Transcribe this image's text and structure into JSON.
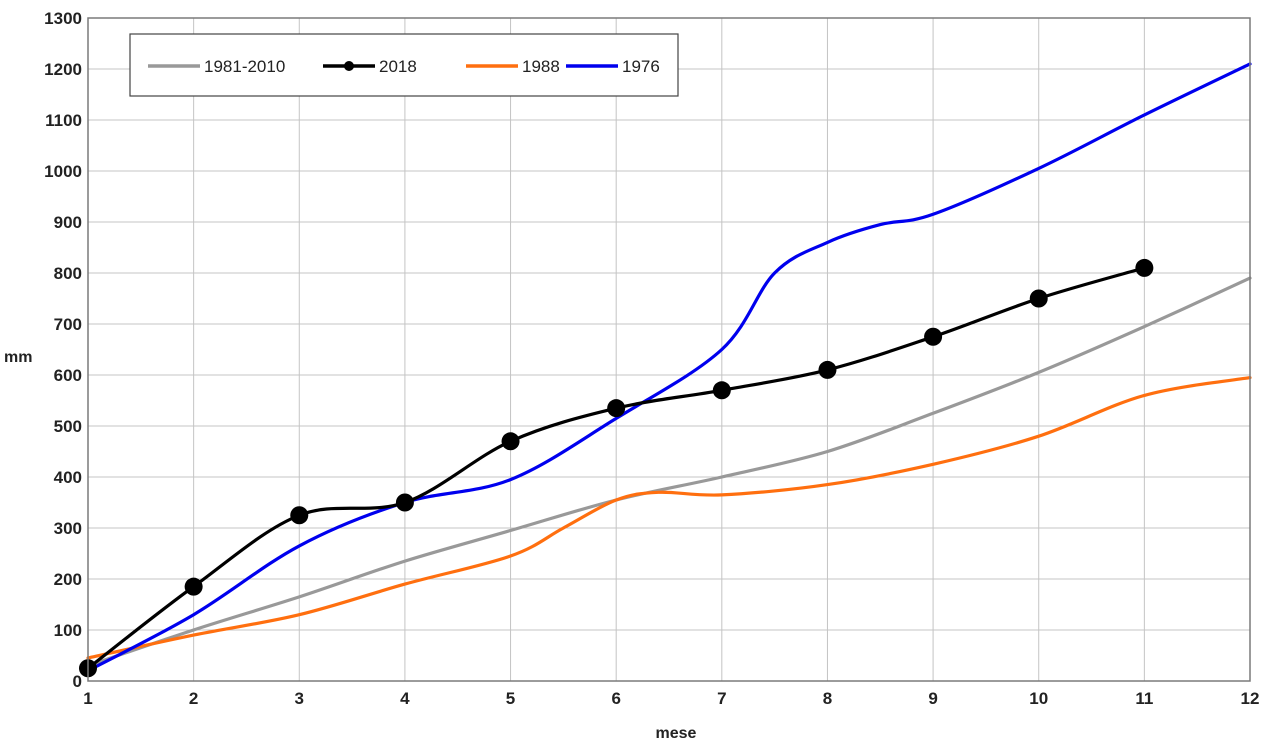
{
  "chart_data": {
    "type": "line",
    "title": "",
    "xlabel": "mese",
    "ylabel": "mm",
    "xlim": [
      1,
      12
    ],
    "ylim": [
      0,
      1300
    ],
    "x_ticks": [
      1,
      2,
      3,
      4,
      5,
      6,
      7,
      8,
      9,
      10,
      11,
      12
    ],
    "y_ticks": [
      0,
      100,
      200,
      300,
      400,
      500,
      600,
      700,
      800,
      900,
      1000,
      1100,
      1200,
      1300
    ],
    "grid": true,
    "legend_position": "top-left",
    "series": [
      {
        "name": "1981-2010",
        "color": "#999999",
        "markers": false,
        "x": [
          1,
          2,
          3,
          4,
          5,
          6,
          7,
          8,
          9,
          10,
          11,
          12
        ],
        "y": [
          30,
          100,
          165,
          235,
          295,
          355,
          400,
          450,
          525,
          605,
          695,
          790
        ]
      },
      {
        "name": "2018",
        "color": "#000000",
        "markers": true,
        "x": [
          1,
          2,
          3,
          4,
          5,
          6,
          7,
          8,
          9,
          10,
          11
        ],
        "y": [
          25,
          185,
          325,
          350,
          470,
          535,
          570,
          610,
          675,
          750,
          810
        ]
      },
      {
        "name": "1988",
        "color": "#ff6f0f",
        "markers": false,
        "x": [
          1,
          2,
          3,
          4,
          5,
          5.5,
          6,
          6.4,
          7,
          8,
          9,
          10,
          11,
          12
        ],
        "y": [
          45,
          90,
          130,
          190,
          245,
          300,
          355,
          370,
          365,
          385,
          425,
          480,
          560,
          595
        ]
      },
      {
        "name": "1976",
        "color": "#0000ee",
        "markers": false,
        "x": [
          1,
          2,
          3,
          4,
          5,
          6,
          7,
          7.5,
          8,
          8.5,
          9,
          10,
          11,
          12
        ],
        "y": [
          20,
          130,
          265,
          350,
          395,
          515,
          650,
          800,
          860,
          895,
          915,
          1005,
          1110,
          1210
        ]
      }
    ]
  }
}
